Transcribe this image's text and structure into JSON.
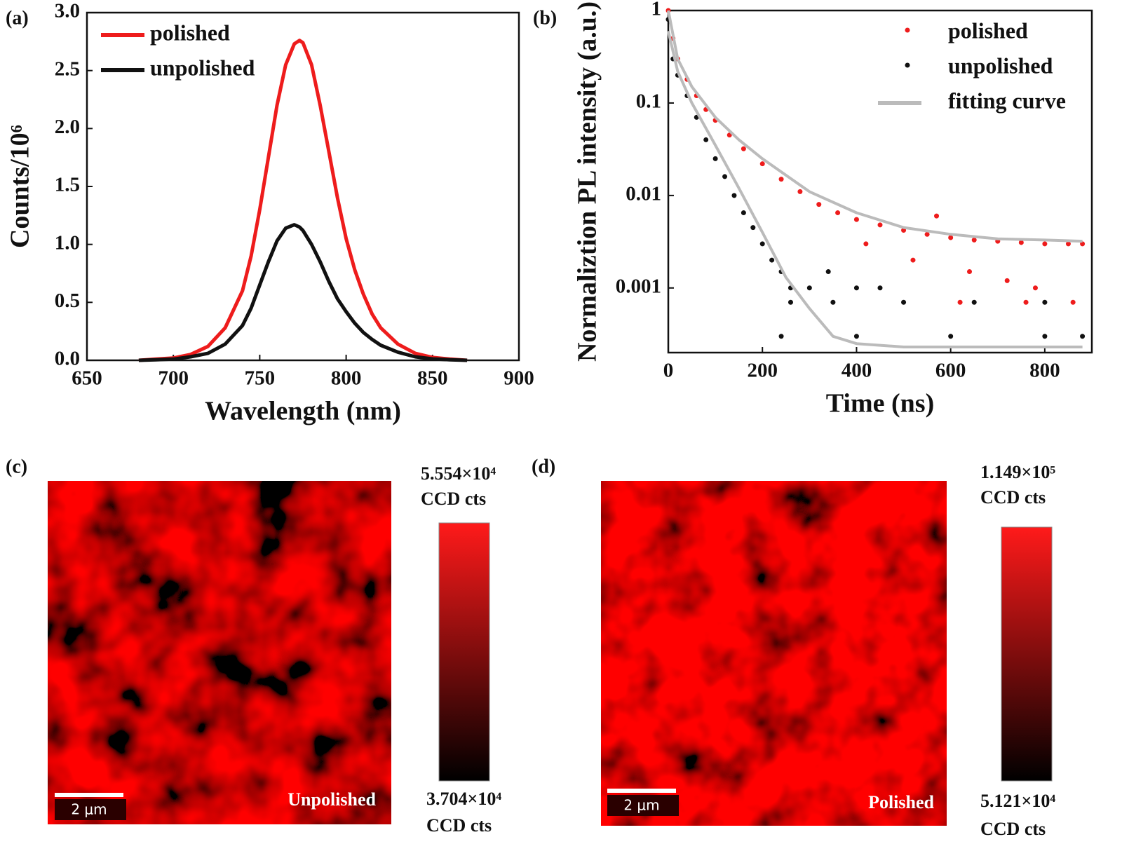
{
  "chart_data": [
    {
      "type": "line",
      "panel_label": "(a)",
      "x_label": "Wavelength (nm)",
      "y_label": "Counts/10⁶",
      "x": [
        680,
        690,
        700,
        710,
        720,
        730,
        740,
        745,
        750,
        755,
        760,
        765,
        770,
        773,
        775,
        780,
        785,
        790,
        795,
        800,
        805,
        810,
        815,
        820,
        830,
        840,
        850,
        860,
        870
      ],
      "series": [
        {
          "name": "polished",
          "color": "#ee1c1c",
          "values": [
            0,
            0.01,
            0.02,
            0.05,
            0.12,
            0.28,
            0.6,
            0.9,
            1.3,
            1.75,
            2.2,
            2.55,
            2.73,
            2.76,
            2.74,
            2.55,
            2.2,
            1.8,
            1.4,
            1.05,
            0.78,
            0.57,
            0.4,
            0.28,
            0.14,
            0.06,
            0.025,
            0.01,
            0
          ]
        },
        {
          "name": "unpolished",
          "color": "#111111",
          "values": [
            0,
            0.005,
            0.01,
            0.03,
            0.06,
            0.14,
            0.3,
            0.45,
            0.65,
            0.85,
            1.03,
            1.14,
            1.17,
            1.15,
            1.12,
            1.0,
            0.85,
            0.68,
            0.53,
            0.42,
            0.32,
            0.24,
            0.18,
            0.13,
            0.07,
            0.03,
            0.012,
            0.005,
            0
          ]
        }
      ],
      "xlim": [
        650,
        900
      ],
      "xticks": [
        650,
        700,
        750,
        800,
        850,
        900
      ],
      "ylim": [
        0,
        3
      ],
      "yticks": [
        {
          "value": 0,
          "label": "0.0"
        },
        0.5,
        {
          "value": 1,
          "label": "1.0"
        },
        1.5,
        {
          "value": 2,
          "label": "2.0"
        },
        2.5,
        {
          "value": 3,
          "label": "3.0"
        }
      ],
      "legend": "upper left"
    },
    {
      "type": "scatter",
      "panel_label": "(b)",
      "x_label": "Time (ns)",
      "y_label": "Normaliztion PL intensity (a.u.)",
      "yscale": "log",
      "series": [
        {
          "name": "polished",
          "color": "#ee1c1c",
          "style": "markers",
          "x": [
            0,
            10,
            20,
            40,
            60,
            80,
            100,
            130,
            160,
            200,
            240,
            280,
            320,
            360,
            400,
            450,
            500,
            550,
            600,
            650,
            700,
            750,
            800,
            850,
            880,
            420,
            520,
            640,
            720,
            780,
            860,
            760,
            620,
            570
          ],
          "values": [
            1,
            0.5,
            0.3,
            0.18,
            0.12,
            0.085,
            0.065,
            0.045,
            0.032,
            0.022,
            0.015,
            0.011,
            0.008,
            0.0065,
            0.0055,
            0.0048,
            0.0042,
            0.0038,
            0.0035,
            0.0033,
            0.0032,
            0.0031,
            0.003,
            0.003,
            0.003,
            0.003,
            0.002,
            0.0015,
            0.0012,
            0.001,
            0.0007,
            0.0007,
            0.0007,
            0.006
          ]
        },
        {
          "name": "unpolished",
          "color": "#111111",
          "style": "markers",
          "x": [
            0,
            10,
            20,
            40,
            60,
            80,
            100,
            120,
            140,
            160,
            180,
            200,
            220,
            240,
            260,
            300,
            340,
            400,
            450,
            260,
            350,
            500,
            650,
            800,
            240,
            400,
            600,
            800,
            880
          ],
          "values": [
            0.8,
            0.3,
            0.2,
            0.12,
            0.07,
            0.04,
            0.025,
            0.016,
            0.01,
            0.0065,
            0.0045,
            0.003,
            0.002,
            0.0015,
            0.001,
            0.001,
            0.0015,
            0.001,
            0.001,
            0.0007,
            0.0007,
            0.0007,
            0.0007,
            0.0007,
            0.0003,
            0.0003,
            0.0003,
            0.0003,
            0.0003
          ]
        },
        {
          "name": "fitting curve",
          "color": "#bbbbbb",
          "style": "line",
          "x": [
            0,
            20,
            50,
            100,
            150,
            200,
            300,
            400,
            500,
            600,
            700,
            800,
            880,
            null,
            0,
            20,
            50,
            100,
            150,
            200,
            250,
            300,
            350,
            400,
            500,
            880
          ],
          "values": [
            1,
            0.3,
            0.15,
            0.07,
            0.04,
            0.025,
            0.011,
            0.0065,
            0.0045,
            0.0038,
            0.0034,
            0.0033,
            0.0032,
            null,
            0.6,
            0.22,
            0.1,
            0.035,
            0.012,
            0.004,
            0.0013,
            0.0006,
            0.0003,
            0.00025,
            0.00023,
            0.00023
          ]
        }
      ],
      "xlim": [
        0,
        900
      ],
      "xticks": [
        0,
        200,
        400,
        600,
        800
      ],
      "ylim": [
        0.0002,
        1
      ],
      "yticks": [
        0.001,
        0.01,
        0.1,
        1
      ],
      "legend": "upper right"
    }
  ],
  "images": [
    {
      "panel_label": "(c)",
      "label": "Unpolished",
      "scale_bar": "2 μm",
      "colorbar_max": "5.554×10⁴",
      "colorbar_min": "3.704×10⁴",
      "unit": "CCD cts"
    },
    {
      "panel_label": "(d)",
      "label": "Polished",
      "scale_bar": "2 μm",
      "colorbar_max": "1.149×10⁵",
      "colorbar_min": "5.121×10⁴",
      "unit": "CCD cts"
    }
  ]
}
